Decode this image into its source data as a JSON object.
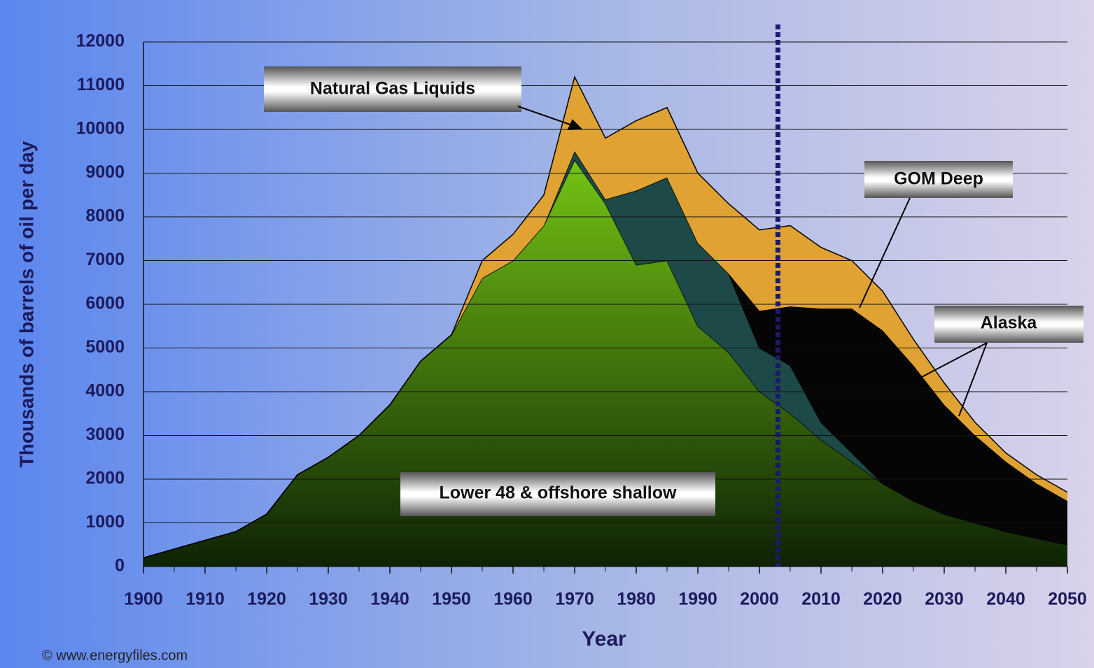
{
  "chart_data": {
    "type": "stacked_area",
    "ylabel": "Thousands of barrels of oil per day",
    "xlabel": "Year",
    "source": "© www.energyfiles.com",
    "x": [
      1900,
      1905,
      1910,
      1915,
      1920,
      1925,
      1930,
      1935,
      1940,
      1945,
      1950,
      1955,
      1960,
      1965,
      1970,
      1975,
      1980,
      1985,
      1990,
      1995,
      2000,
      2005,
      2010,
      2015,
      2020,
      2025,
      2030,
      2035,
      2040,
      2045,
      2050
    ],
    "series": [
      {
        "name": "Lower 48 & offshore shallow",
        "color": "#3f8a10",
        "values": [
          200,
          400,
          600,
          800,
          1200,
          2100,
          2500,
          3000,
          3700,
          4700,
          5300,
          6600,
          7000,
          7800,
          9300,
          8300,
          6900,
          7000,
          5500,
          4900,
          4000,
          3500,
          2900,
          2400,
          1900,
          1500,
          1200,
          1000,
          800,
          650,
          500
        ]
      },
      {
        "name": "Alaska",
        "color": "#1d4a48",
        "values": [
          0,
          0,
          0,
          0,
          0,
          0,
          0,
          0,
          0,
          0,
          0,
          0,
          0,
          0,
          200,
          100,
          1700,
          1900,
          1900,
          1800,
          1000,
          1100,
          400,
          200,
          0,
          0,
          0,
          0,
          0,
          0,
          0
        ]
      },
      {
        "name": "GOM Deep",
        "color": "#050505",
        "values": [
          0,
          0,
          0,
          0,
          0,
          0,
          0,
          0,
          0,
          0,
          0,
          0,
          0,
          0,
          0,
          0,
          0,
          0,
          0,
          0,
          850,
          1350,
          2600,
          3300,
          3500,
          3100,
          2500,
          2000,
          1600,
          1250,
          1000
        ]
      },
      {
        "name": "Natural Gas Liquids",
        "color": "#e0a232",
        "values": [
          0,
          0,
          0,
          0,
          0,
          0,
          0,
          0,
          0,
          0,
          0,
          400,
          600,
          700,
          1700,
          1400,
          1600,
          1600,
          1600,
          1600,
          1850,
          1850,
          1400,
          1100,
          900,
          600,
          500,
          300,
          200,
          200,
          200
        ]
      }
    ],
    "vline": 2003,
    "xlim": [
      1900,
      2050
    ],
    "ylim": [
      0,
      12000
    ],
    "xticks": [
      1900,
      1910,
      1920,
      1930,
      1940,
      1950,
      1960,
      1970,
      1980,
      1990,
      2000,
      2010,
      2020,
      2030,
      2040,
      2050
    ],
    "yticks": [
      0,
      1000,
      2000,
      3000,
      4000,
      5000,
      6000,
      7000,
      8000,
      9000,
      10000,
      11000,
      12000
    ],
    "grid": true
  }
}
